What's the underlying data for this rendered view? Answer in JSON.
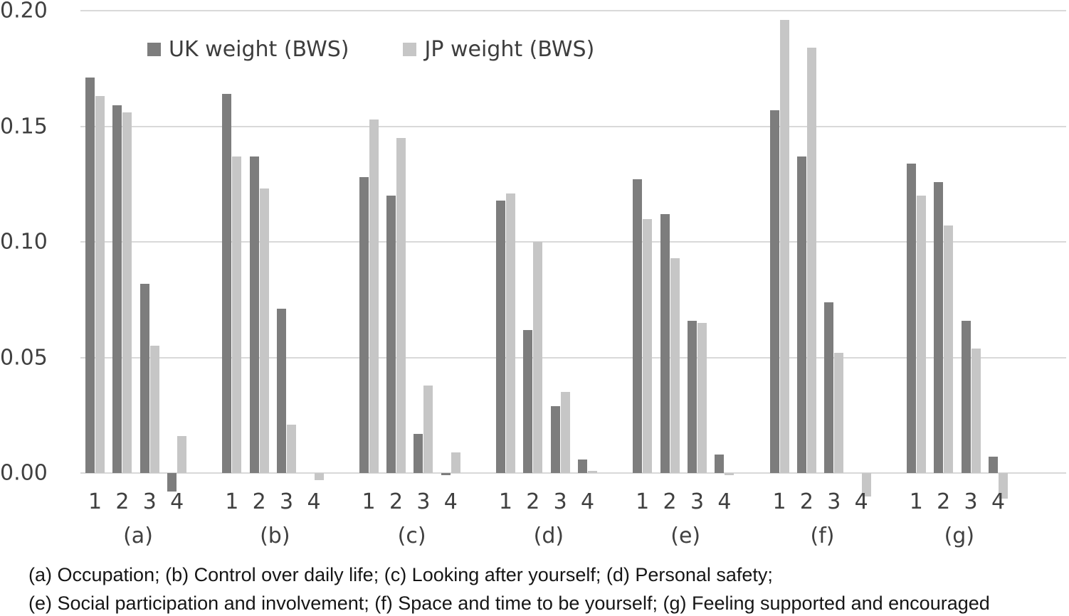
{
  "legend": {
    "items": [
      {
        "label": "UK weight (BWS)",
        "color": "#7d7d7d"
      },
      {
        "label": "JP weight (BWS)",
        "color": "#c6c6c6"
      }
    ]
  },
  "y_axis": {
    "ticks": [
      {
        "label": "0.20",
        "value": 0.2
      },
      {
        "label": "0.15",
        "value": 0.15
      },
      {
        "label": "0.10",
        "value": 0.1
      },
      {
        "label": "0.05",
        "value": 0.05
      },
      {
        "label": "0.00",
        "value": 0.0
      }
    ]
  },
  "chart_data": {
    "type": "bar",
    "title": "",
    "xlabel": "",
    "ylabel": "",
    "ylim": [
      -0.02,
      0.2
    ],
    "grid": true,
    "gridline_values": [
      0.2,
      0.15,
      0.1,
      0.05,
      0.0
    ],
    "legend_position": "top",
    "categories": [
      "(a)",
      "(b)",
      "(c)",
      "(d)",
      "(e)",
      "(f)",
      "(g)"
    ],
    "item_labels": [
      "1",
      "2",
      "3",
      "4"
    ],
    "series": [
      {
        "name": "UK weight (BWS)",
        "color": "#7d7d7d",
        "values": [
          [
            0.171,
            0.159,
            0.082,
            -0.008
          ],
          [
            0.164,
            0.137,
            0.071,
            0.0
          ],
          [
            0.128,
            0.12,
            0.017,
            -0.001
          ],
          [
            0.118,
            0.062,
            0.029,
            0.006
          ],
          [
            0.127,
            0.112,
            0.066,
            0.008
          ],
          [
            0.157,
            0.137,
            0.074,
            0.0
          ],
          [
            0.134,
            0.126,
            0.066,
            0.007
          ]
        ]
      },
      {
        "name": "JP weight (BWS)",
        "color": "#c6c6c6",
        "values": [
          [
            0.163,
            0.156,
            0.055,
            0.016
          ],
          [
            0.137,
            0.123,
            0.021,
            -0.003
          ],
          [
            0.153,
            0.145,
            0.038,
            0.009
          ],
          [
            0.121,
            0.1,
            0.035,
            0.001
          ],
          [
            0.11,
            0.093,
            0.065,
            -0.001
          ],
          [
            0.196,
            0.184,
            0.052,
            -0.01
          ],
          [
            0.12,
            0.107,
            0.054,
            -0.011
          ]
        ]
      }
    ]
  },
  "caption": {
    "line1": "(a) Occupation; (b) Control over daily life; (c) Looking after yourself; (d) Personal safety;",
    "line2": "(e) Social participation and involvement; (f) Space and time to be yourself; (g) Feeling supported and encouraged"
  }
}
